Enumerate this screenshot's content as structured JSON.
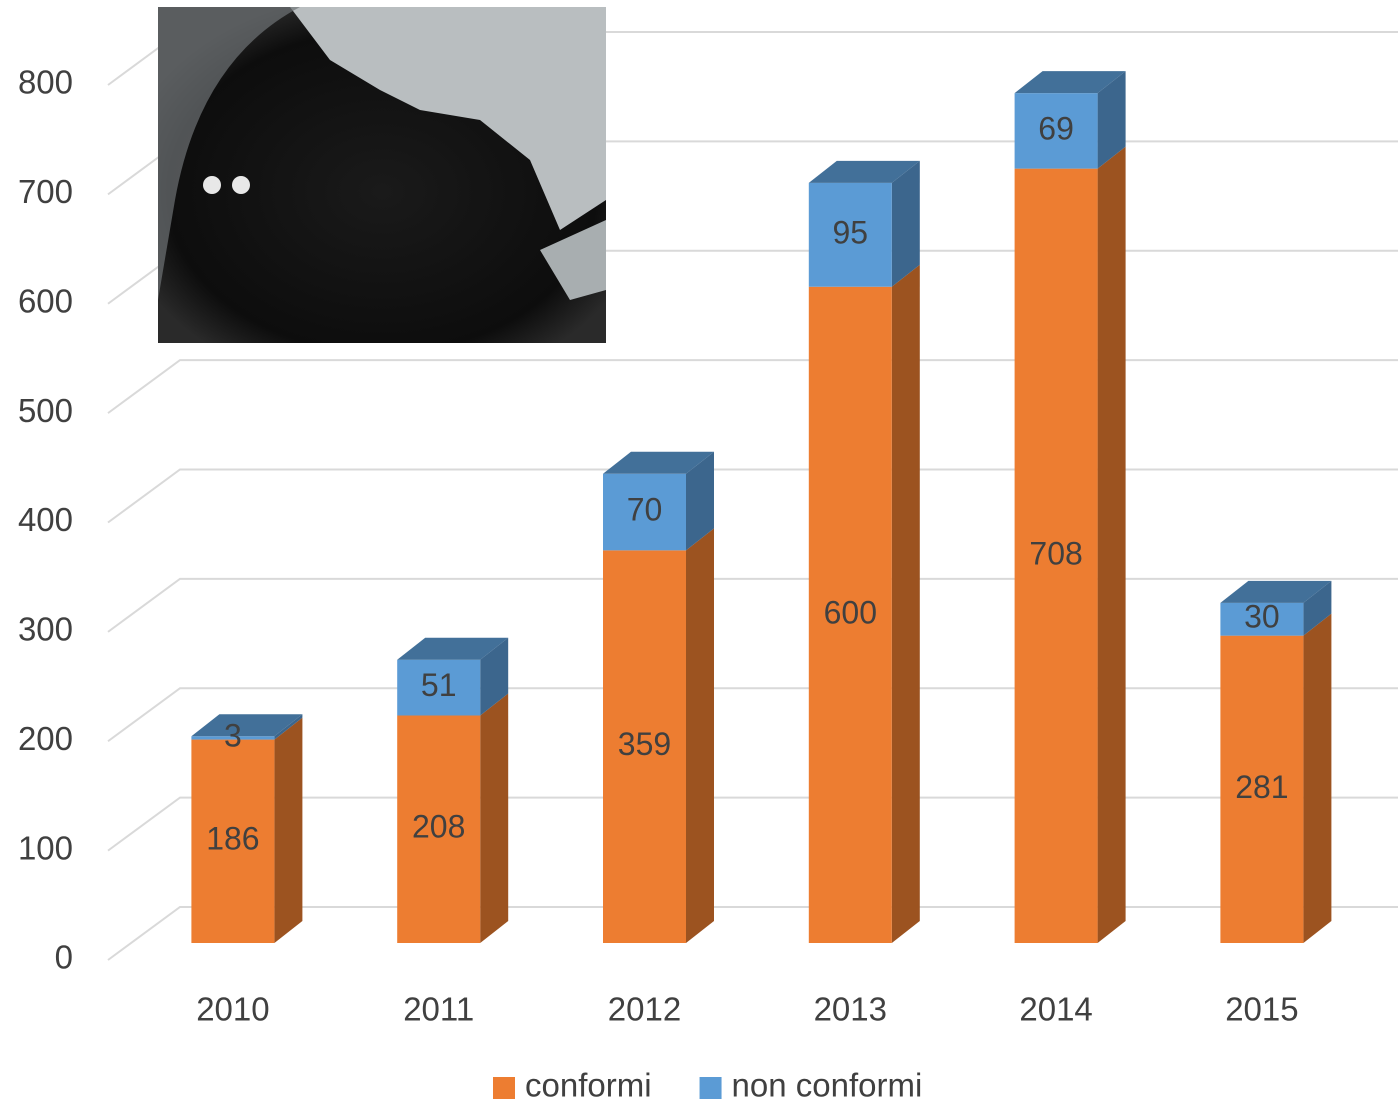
{
  "chart_data": {
    "type": "bar",
    "stacked": true,
    "categories": [
      "2010",
      "2011",
      "2012",
      "2013",
      "2014",
      "2015"
    ],
    "series": [
      {
        "name": "conformi",
        "color": "#ED7D31",
        "values": [
          186,
          208,
          359,
          600,
          708,
          281
        ]
      },
      {
        "name": "non conformi",
        "color": "#5B9BD5",
        "values": [
          3,
          51,
          70,
          95,
          69,
          30
        ]
      }
    ],
    "ylim": [
      0,
      800
    ],
    "yticks": [
      0,
      100,
      200,
      300,
      400,
      500,
      600,
      700,
      800
    ],
    "grid": true
  }
}
